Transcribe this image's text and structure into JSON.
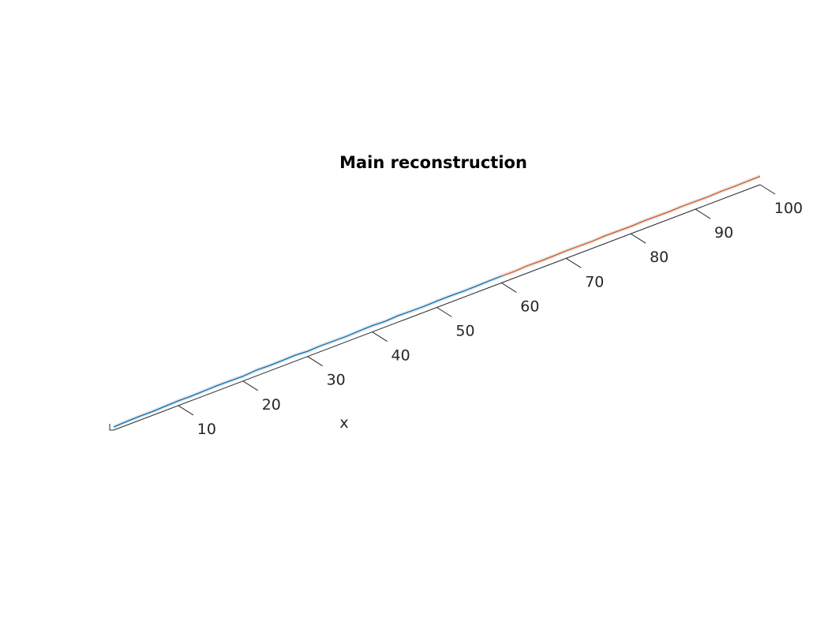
{
  "chart_data": {
    "type": "line",
    "title": "Main reconstruction",
    "xlabel": "x",
    "ylabel": "",
    "zlabel": "",
    "xlim": [
      0,
      100
    ],
    "x_ticks": [
      10,
      20,
      30,
      40,
      50,
      60,
      70,
      80,
      90,
      100
    ],
    "grid": false,
    "legend": "none",
    "series": [
      {
        "color": "#0072BD",
        "x": [
          0,
          2,
          4,
          6,
          8,
          10,
          12,
          14,
          16,
          18,
          20,
          22,
          24,
          26,
          28,
          30,
          32,
          34,
          36,
          38,
          40,
          42,
          44,
          46,
          48,
          50,
          52,
          54,
          56,
          58,
          60
        ],
        "y": [
          0.0,
          0.3,
          0.5,
          0.4,
          0.7,
          0.9,
          0.8,
          1.0,
          1.2,
          1.1,
          0.9,
          1.5,
          1.3,
          1.4,
          1.6,
          1.2,
          1.5,
          1.4,
          1.3,
          1.6,
          1.8,
          1.5,
          1.9,
          1.7,
          1.6,
          1.8,
          1.9,
          1.7,
          1.8,
          2.0,
          2.1
        ]
      },
      {
        "color": "#D95319",
        "x": [
          60,
          62,
          64,
          66,
          68,
          70,
          72,
          74,
          76,
          78,
          80,
          82,
          84,
          86,
          88,
          90,
          92,
          94,
          96,
          98,
          100
        ],
        "y": [
          2.1,
          2.0,
          2.4,
          2.2,
          2.3,
          2.5,
          2.4,
          2.3,
          2.6,
          2.5,
          2.4,
          2.7,
          2.6,
          2.5,
          2.8,
          2.7,
          2.6,
          2.9,
          2.8,
          2.9,
          3.0
        ]
      }
    ],
    "band_color": "#d9d9d9"
  }
}
